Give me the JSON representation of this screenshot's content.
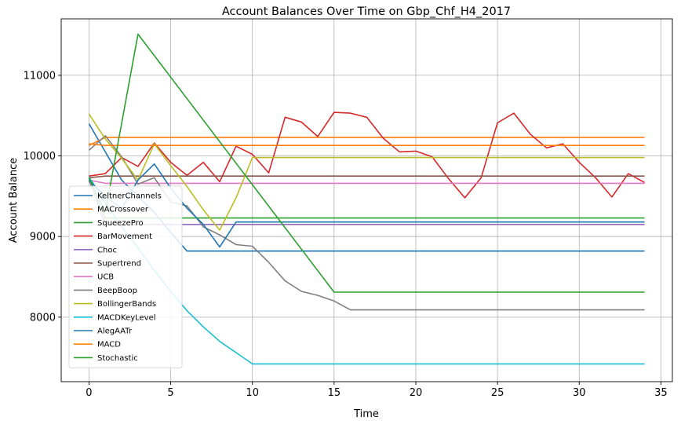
{
  "chart_data": {
    "type": "line",
    "title": "Account Balances Over Time on Gbp_Chf_H4_2017",
    "xlabel": "Time",
    "ylabel": "Account Balance",
    "xlim": [
      -1.7,
      35.7
    ],
    "ylim": [
      7200,
      11700
    ],
    "xticks": [
      0,
      5,
      10,
      15,
      20,
      25,
      30,
      35
    ],
    "yticks": [
      8000,
      9000,
      10000,
      11000
    ],
    "grid": true,
    "legend_position": "lower-left",
    "series": [
      {
        "name": "KeltnerChannels",
        "color": "#1f77b4",
        "points": [
          [
            0,
            10400
          ],
          [
            1,
            10050
          ],
          [
            2,
            9700
          ],
          [
            3,
            9500
          ],
          [
            4,
            9300
          ],
          [
            5,
            9050
          ],
          [
            6,
            8820
          ],
          [
            34,
            8820
          ]
        ]
      },
      {
        "name": "MACrossover",
        "color": "#ff7f0e",
        "points": [
          [
            0,
            10130
          ],
          [
            1,
            10230
          ],
          [
            34,
            10230
          ]
        ]
      },
      {
        "name": "SqueezePro",
        "color": "#2ca02c",
        "points": [
          [
            0,
            9700
          ],
          [
            1,
            9230
          ],
          [
            34,
            9230
          ]
        ]
      },
      {
        "name": "BarMovement",
        "color": "#d62728",
        "points": [
          [
            0,
            9750
          ],
          [
            1,
            9780
          ],
          [
            2,
            9980
          ],
          [
            3,
            9870
          ],
          [
            4,
            10160
          ],
          [
            5,
            9920
          ],
          [
            6,
            9760
          ],
          [
            7,
            9920
          ],
          [
            8,
            9680
          ],
          [
            9,
            10120
          ],
          [
            10,
            10020
          ],
          [
            11,
            9790
          ],
          [
            12,
            10480
          ],
          [
            13,
            10420
          ],
          [
            14,
            10240
          ],
          [
            15,
            10540
          ],
          [
            16,
            10530
          ],
          [
            17,
            10480
          ],
          [
            18,
            10220
          ],
          [
            19,
            10050
          ],
          [
            20,
            10060
          ],
          [
            21,
            9990
          ],
          [
            22,
            9720
          ],
          [
            23,
            9480
          ],
          [
            24,
            9730
          ],
          [
            25,
            10410
          ],
          [
            26,
            10530
          ],
          [
            27,
            10270
          ],
          [
            28,
            10100
          ],
          [
            29,
            10150
          ],
          [
            30,
            9920
          ],
          [
            31,
            9730
          ],
          [
            32,
            9490
          ],
          [
            33,
            9780
          ],
          [
            34,
            9670
          ]
        ]
      },
      {
        "name": "Choc",
        "color": "#9467bd",
        "points": [
          [
            0,
            9720
          ],
          [
            1,
            9150
          ],
          [
            34,
            9150
          ]
        ]
      },
      {
        "name": "Supertrend",
        "color": "#8c564b",
        "points": [
          [
            0,
            9730
          ],
          [
            1,
            9750
          ],
          [
            34,
            9750
          ]
        ]
      },
      {
        "name": "UCB",
        "color": "#e377c2",
        "points": [
          [
            0,
            9700
          ],
          [
            1,
            9660
          ],
          [
            34,
            9660
          ]
        ]
      },
      {
        "name": "BeepBoop",
        "color": "#7f7f7f",
        "points": [
          [
            0,
            10070
          ],
          [
            1,
            10250
          ],
          [
            2,
            9990
          ],
          [
            3,
            9650
          ],
          [
            4,
            9730
          ],
          [
            5,
            9430
          ],
          [
            6,
            9380
          ],
          [
            7,
            9120
          ],
          [
            8,
            9020
          ],
          [
            9,
            8900
          ],
          [
            10,
            8880
          ],
          [
            11,
            8680
          ],
          [
            12,
            8450
          ],
          [
            13,
            8320
          ],
          [
            14,
            8270
          ],
          [
            15,
            8200
          ],
          [
            16,
            8090
          ],
          [
            34,
            8090
          ]
        ]
      },
      {
        "name": "BollingerBands",
        "color": "#bcbd22",
        "points": [
          [
            0,
            10520
          ],
          [
            1,
            10210
          ],
          [
            2,
            9970
          ],
          [
            3,
            9700
          ],
          [
            4,
            10150
          ],
          [
            5,
            9880
          ],
          [
            6,
            9620
          ],
          [
            7,
            9330
          ],
          [
            8,
            9080
          ],
          [
            9,
            9480
          ],
          [
            10,
            9980
          ],
          [
            34,
            9980
          ]
        ]
      },
      {
        "name": "MACDKeyLevel",
        "color": "#17becf",
        "points": [
          [
            0,
            9740
          ],
          [
            1,
            9420
          ],
          [
            2,
            9120
          ],
          [
            3,
            8860
          ],
          [
            4,
            8580
          ],
          [
            5,
            8320
          ],
          [
            6,
            8080
          ],
          [
            7,
            7880
          ],
          [
            8,
            7700
          ],
          [
            9,
            7560
          ],
          [
            10,
            7420
          ],
          [
            34,
            7420
          ]
        ]
      },
      {
        "name": "AlegAATr",
        "color": "#1f77b4",
        "points": [
          [
            0,
            9700
          ],
          [
            1,
            9500
          ],
          [
            2,
            9350
          ],
          [
            3,
            9700
          ],
          [
            4,
            9900
          ],
          [
            5,
            9600
          ],
          [
            6,
            9350
          ],
          [
            7,
            9150
          ],
          [
            8,
            8870
          ],
          [
            9,
            9180
          ],
          [
            34,
            9180
          ]
        ]
      },
      {
        "name": "MACD",
        "color": "#ff7f0e",
        "points": [
          [
            0,
            10150
          ],
          [
            1,
            10130
          ],
          [
            34,
            10130
          ]
        ]
      },
      {
        "name": "Stochastic",
        "color": "#2ca02c",
        "points": [
          [
            0,
            9730
          ],
          [
            1,
            9300
          ],
          [
            3,
            11510
          ],
          [
            15,
            8310
          ],
          [
            34,
            8310
          ]
        ]
      }
    ]
  }
}
